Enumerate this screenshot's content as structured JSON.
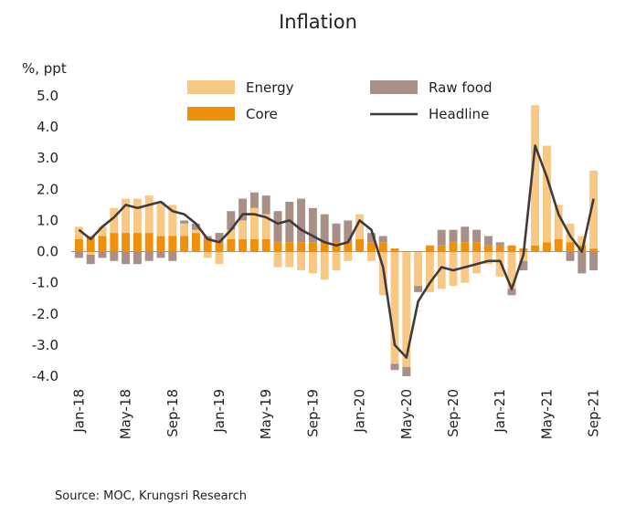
{
  "chart_data": {
    "type": "bar",
    "title": "Inflation",
    "ylabel": "%, ppt",
    "ylim": [
      -4.0,
      5.0
    ],
    "yticks": [
      "5.0",
      "4.0",
      "3.0",
      "2.0",
      "1.0",
      "0.0",
      "-1.0",
      "-2.0",
      "-3.0",
      "-4.0"
    ],
    "xtick_labels": [
      "Jan-18",
      "May-18",
      "Sep-18",
      "Jan-19",
      "May-19",
      "Sep-19",
      "Jan-20",
      "May-20",
      "Sep-20",
      "Jan-21",
      "May-21",
      "Sep-21"
    ],
    "legend_placement": "top",
    "stacked": true,
    "categories": [
      "Jan-18",
      "Feb-18",
      "Mar-18",
      "Apr-18",
      "May-18",
      "Jun-18",
      "Jul-18",
      "Aug-18",
      "Sep-18",
      "Oct-18",
      "Nov-18",
      "Dec-18",
      "Jan-19",
      "Feb-19",
      "Mar-19",
      "Apr-19",
      "May-19",
      "Jun-19",
      "Jul-19",
      "Aug-19",
      "Sep-19",
      "Oct-19",
      "Nov-19",
      "Dec-19",
      "Jan-20",
      "Feb-20",
      "Mar-20",
      "Apr-20",
      "May-20",
      "Jun-20",
      "Jul-20",
      "Aug-20",
      "Sep-20",
      "Oct-20",
      "Nov-20",
      "Dec-20",
      "Jan-21",
      "Feb-21",
      "Mar-21",
      "Apr-21",
      "May-21",
      "Jun-21",
      "Jul-21",
      "Aug-21",
      "Sep-21"
    ],
    "series": [
      {
        "name": "Core",
        "kind": "bar",
        "color": "#f0900a",
        "values": [
          0.4,
          0.5,
          0.5,
          0.6,
          0.6,
          0.6,
          0.6,
          0.5,
          0.5,
          0.5,
          0.6,
          0.4,
          0.3,
          0.4,
          0.4,
          0.4,
          0.4,
          0.3,
          0.3,
          0.3,
          0.3,
          0.3,
          0.3,
          0.3,
          0.4,
          0.3,
          0.3,
          0.1,
          0.0,
          0.0,
          0.2,
          0.2,
          0.3,
          0.3,
          0.3,
          0.2,
          0.2,
          0.2,
          0.1,
          0.2,
          0.3,
          0.4,
          0.3,
          0.2,
          0.1
        ]
      },
      {
        "name": "Energy",
        "kind": "bar",
        "color": "#f8c885",
        "values": [
          0.4,
          -0.1,
          0.3,
          0.8,
          1.1,
          1.1,
          1.2,
          1.1,
          1.0,
          0.4,
          0.1,
          -0.2,
          -0.4,
          0.3,
          0.6,
          1.0,
          0.8,
          -0.5,
          -0.5,
          -0.6,
          -0.7,
          -0.9,
          -0.6,
          -0.3,
          0.8,
          -0.3,
          -1.4,
          -3.6,
          -3.7,
          -1.1,
          -1.3,
          -1.2,
          -1.1,
          -1.0,
          -0.7,
          -0.4,
          -0.8,
          -1.2,
          -0.3,
          4.5,
          3.1,
          1.1,
          0.6,
          0.3,
          2.5
        ]
      },
      {
        "name": "Raw food",
        "kind": "bar",
        "color": "#a89088",
        "values": [
          -0.2,
          -0.3,
          -0.2,
          -0.3,
          -0.4,
          -0.4,
          -0.3,
          -0.2,
          -0.3,
          0.1,
          0.2,
          0.1,
          0.3,
          0.6,
          0.7,
          0.5,
          0.6,
          1.0,
          1.3,
          1.4,
          1.1,
          0.9,
          0.6,
          0.7,
          0.0,
          0.3,
          0.2,
          -0.2,
          -0.3,
          -0.2,
          0.0,
          0.5,
          0.4,
          0.5,
          0.4,
          0.3,
          0.1,
          -0.2,
          -0.3,
          0.0,
          0.0,
          0.0,
          -0.3,
          -0.7,
          -0.6
        ]
      },
      {
        "name": "Headline",
        "kind": "line",
        "color": "#403a3a",
        "values": [
          0.7,
          0.4,
          0.8,
          1.1,
          1.5,
          1.4,
          1.5,
          1.6,
          1.3,
          1.2,
          0.9,
          0.4,
          0.3,
          0.7,
          1.2,
          1.2,
          1.1,
          0.9,
          1.0,
          0.7,
          0.5,
          0.3,
          0.2,
          0.3,
          1.0,
          0.7,
          -0.5,
          -3.0,
          -3.4,
          -1.6,
          -1.0,
          -0.5,
          -0.6,
          -0.5,
          -0.4,
          -0.3,
          -0.3,
          -1.2,
          -0.1,
          3.4,
          2.4,
          1.2,
          0.5,
          0.0,
          1.7
        ]
      }
    ]
  },
  "source": "Source:  MOC, Krungsri Research"
}
